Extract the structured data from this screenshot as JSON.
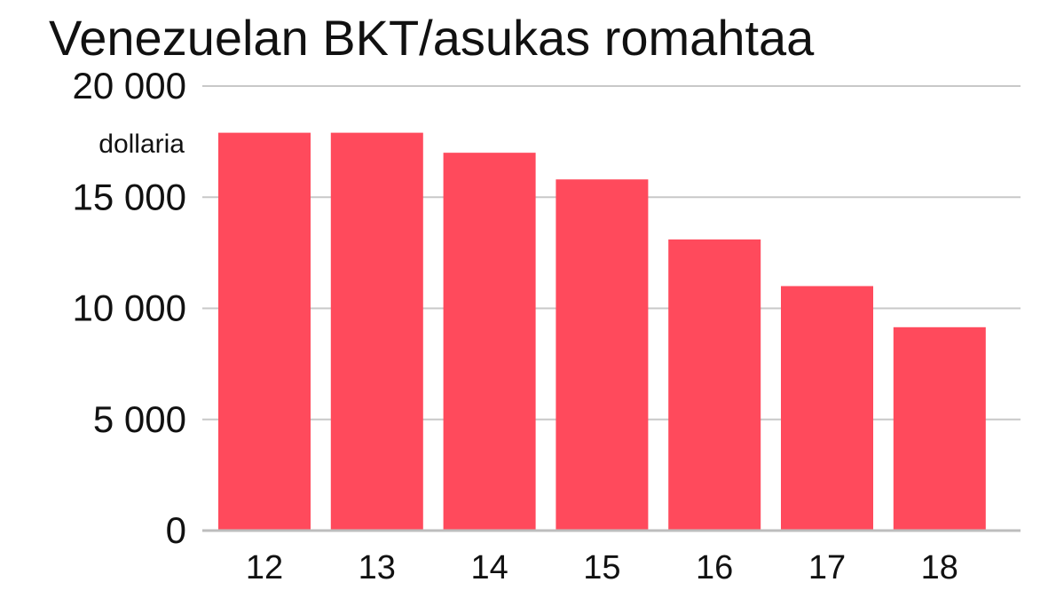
{
  "chart_data": {
    "type": "bar",
    "title": "Venezuelan BKT/asukas romahtaa",
    "ylabel": "dollaria",
    "categories": [
      "12",
      "13",
      "14",
      "15",
      "16",
      "17",
      "18"
    ],
    "values": [
      17900,
      17900,
      17000,
      15800,
      13100,
      11000,
      9150
    ],
    "ylim": [
      0,
      20000
    ],
    "yticks": [
      {
        "value": 0,
        "label": "0"
      },
      {
        "value": 5000,
        "label": "5 000"
      },
      {
        "value": 10000,
        "label": "10 000"
      },
      {
        "value": 15000,
        "label": "15 000"
      },
      {
        "value": 20000,
        "label": "20 000"
      }
    ],
    "grid": true,
    "legend": "none",
    "colors": {
      "bar": "#ff4a5c",
      "grid": "#c8c8c8",
      "text": "#111111"
    }
  }
}
